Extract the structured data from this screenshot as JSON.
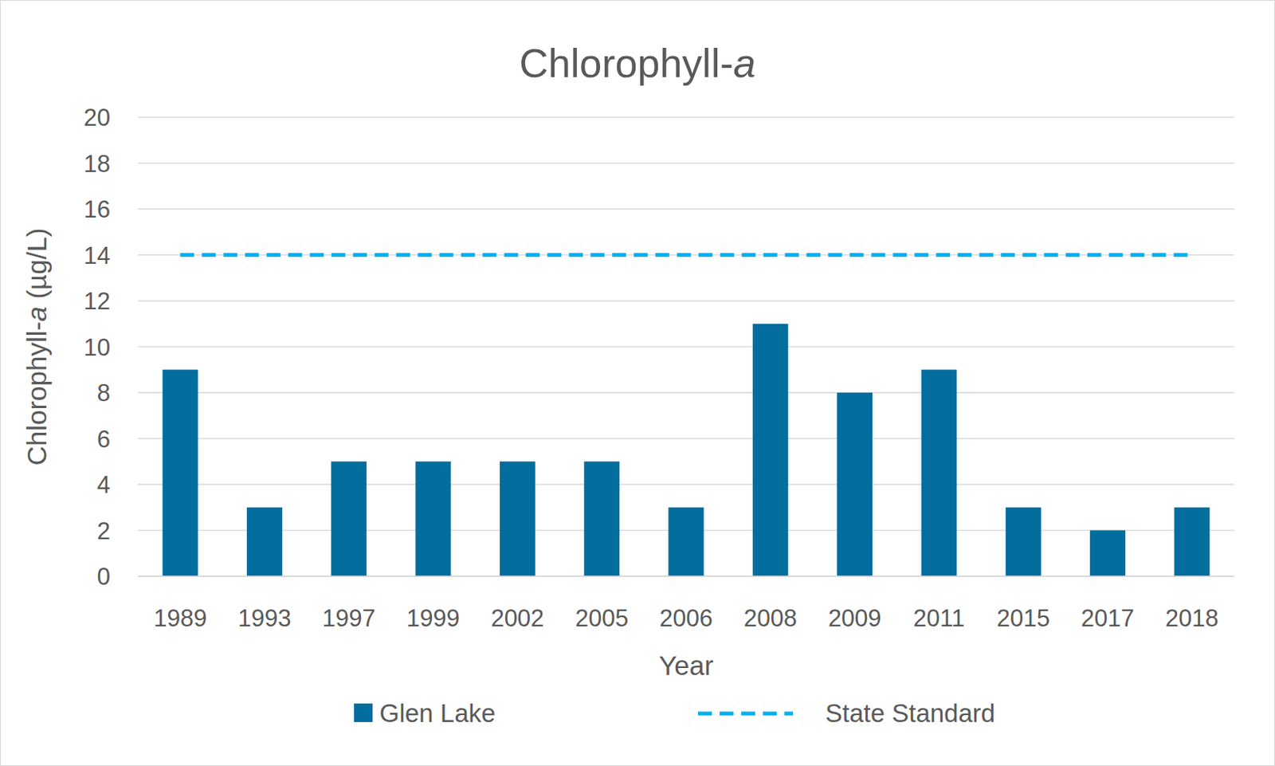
{
  "chart_data": {
    "type": "bar",
    "title": "Chlorophyll-a",
    "x_label": "Year",
    "y_label": "Chlorophyll-a (µg/L)",
    "categories": [
      "1989",
      "1993",
      "1997",
      "1999",
      "2002",
      "2005",
      "2006",
      "2008",
      "2009",
      "2011",
      "2015",
      "2017",
      "2018"
    ],
    "series": [
      {
        "name": "Glen Lake",
        "type": "bar",
        "color": "#036d9e",
        "values": [
          9,
          3,
          5,
          5,
          5,
          5,
          3,
          11,
          8,
          9,
          3,
          2,
          3
        ]
      },
      {
        "name": "State Standard",
        "type": "line",
        "line_style": "dashed",
        "color": "#00b0f0",
        "values": [
          14,
          14,
          14,
          14,
          14,
          14,
          14,
          14,
          14,
          14,
          14,
          14,
          14
        ]
      }
    ],
    "ylim": [
      0,
      20
    ],
    "yticks": [
      0,
      2,
      4,
      6,
      8,
      10,
      12,
      14,
      16,
      18,
      20
    ],
    "grid": true,
    "legend": "bottom"
  }
}
